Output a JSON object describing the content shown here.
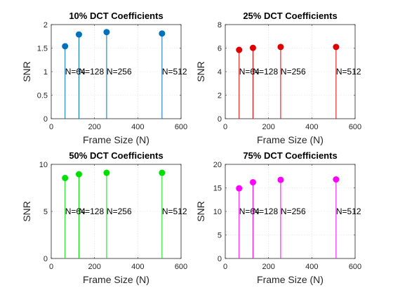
{
  "figure": {
    "background": "#ffffff",
    "axis_color": "#262626",
    "grid": true,
    "grid_style": "dotted"
  },
  "chart_data": [
    {
      "type": "stem",
      "title": "10% DCT Coefficients",
      "xlabel": "Frame Size (N)",
      "ylabel": "SNR",
      "xlim": [
        0,
        600
      ],
      "ylim": [
        0,
        2
      ],
      "xticks": [
        0,
        200,
        400,
        600
      ],
      "yticks": [
        0,
        0.5,
        1,
        1.5,
        2
      ],
      "color": "#0072bd",
      "x": [
        64,
        128,
        256,
        512
      ],
      "y": [
        1.54,
        1.79,
        1.84,
        1.81
      ],
      "annotations": [
        {
          "text": "N=64",
          "x": 64,
          "y": 1.0
        },
        {
          "text": "N=128",
          "x": 128,
          "y": 1.0
        },
        {
          "text": "N=256",
          "x": 256,
          "y": 1.0
        },
        {
          "text": "N=512",
          "x": 512,
          "y": 1.0
        }
      ]
    },
    {
      "type": "stem",
      "title": "25% DCT Coefficients",
      "xlabel": "Frame Size (N)",
      "ylabel": "SNR",
      "xlim": [
        0,
        600
      ],
      "ylim": [
        0,
        8
      ],
      "xticks": [
        0,
        200,
        400,
        600
      ],
      "yticks": [
        0,
        2,
        4,
        6,
        8
      ],
      "color": "#e00000",
      "x": [
        64,
        128,
        256,
        512
      ],
      "y": [
        5.85,
        6.02,
        6.1,
        6.1
      ],
      "annotations": [
        {
          "text": "N=64",
          "x": 64,
          "y": 4.0
        },
        {
          "text": "N=128",
          "x": 128,
          "y": 4.0
        },
        {
          "text": "N=256",
          "x": 256,
          "y": 4.0
        },
        {
          "text": "N=512",
          "x": 512,
          "y": 4.0
        }
      ]
    },
    {
      "type": "stem",
      "title": "50% DCT Coefficients",
      "xlabel": "Frame Size (N)",
      "ylabel": "SNR",
      "xlim": [
        0,
        600
      ],
      "ylim": [
        0,
        10
      ],
      "xticks": [
        0,
        200,
        400,
        600
      ],
      "yticks": [
        0,
        5,
        10
      ],
      "color": "#00e000",
      "x": [
        64,
        128,
        256,
        512
      ],
      "y": [
        8.55,
        8.95,
        9.1,
        9.1
      ],
      "annotations": [
        {
          "text": "N=64",
          "x": 64,
          "y": 5.0
        },
        {
          "text": "N=128",
          "x": 128,
          "y": 5.0
        },
        {
          "text": "N=256",
          "x": 256,
          "y": 5.0
        },
        {
          "text": "N=512",
          "x": 512,
          "y": 5.0
        }
      ]
    },
    {
      "type": "stem",
      "title": "75% DCT Coefficients",
      "xlabel": "Frame Size (N)",
      "ylabel": "SNR",
      "xlim": [
        0,
        600
      ],
      "ylim": [
        0,
        20
      ],
      "xticks": [
        0,
        200,
        400,
        600
      ],
      "yticks": [
        0,
        5,
        10,
        15,
        20
      ],
      "color": "#ff00ff",
      "x": [
        64,
        128,
        256,
        512
      ],
      "y": [
        14.9,
        16.2,
        16.7,
        16.8
      ],
      "annotations": [
        {
          "text": "N=64",
          "x": 64,
          "y": 10.0
        },
        {
          "text": "N=128",
          "x": 128,
          "y": 10.0
        },
        {
          "text": "N=256",
          "x": 256,
          "y": 10.0
        },
        {
          "text": "N=512",
          "x": 512,
          "y": 10.0
        }
      ]
    }
  ]
}
